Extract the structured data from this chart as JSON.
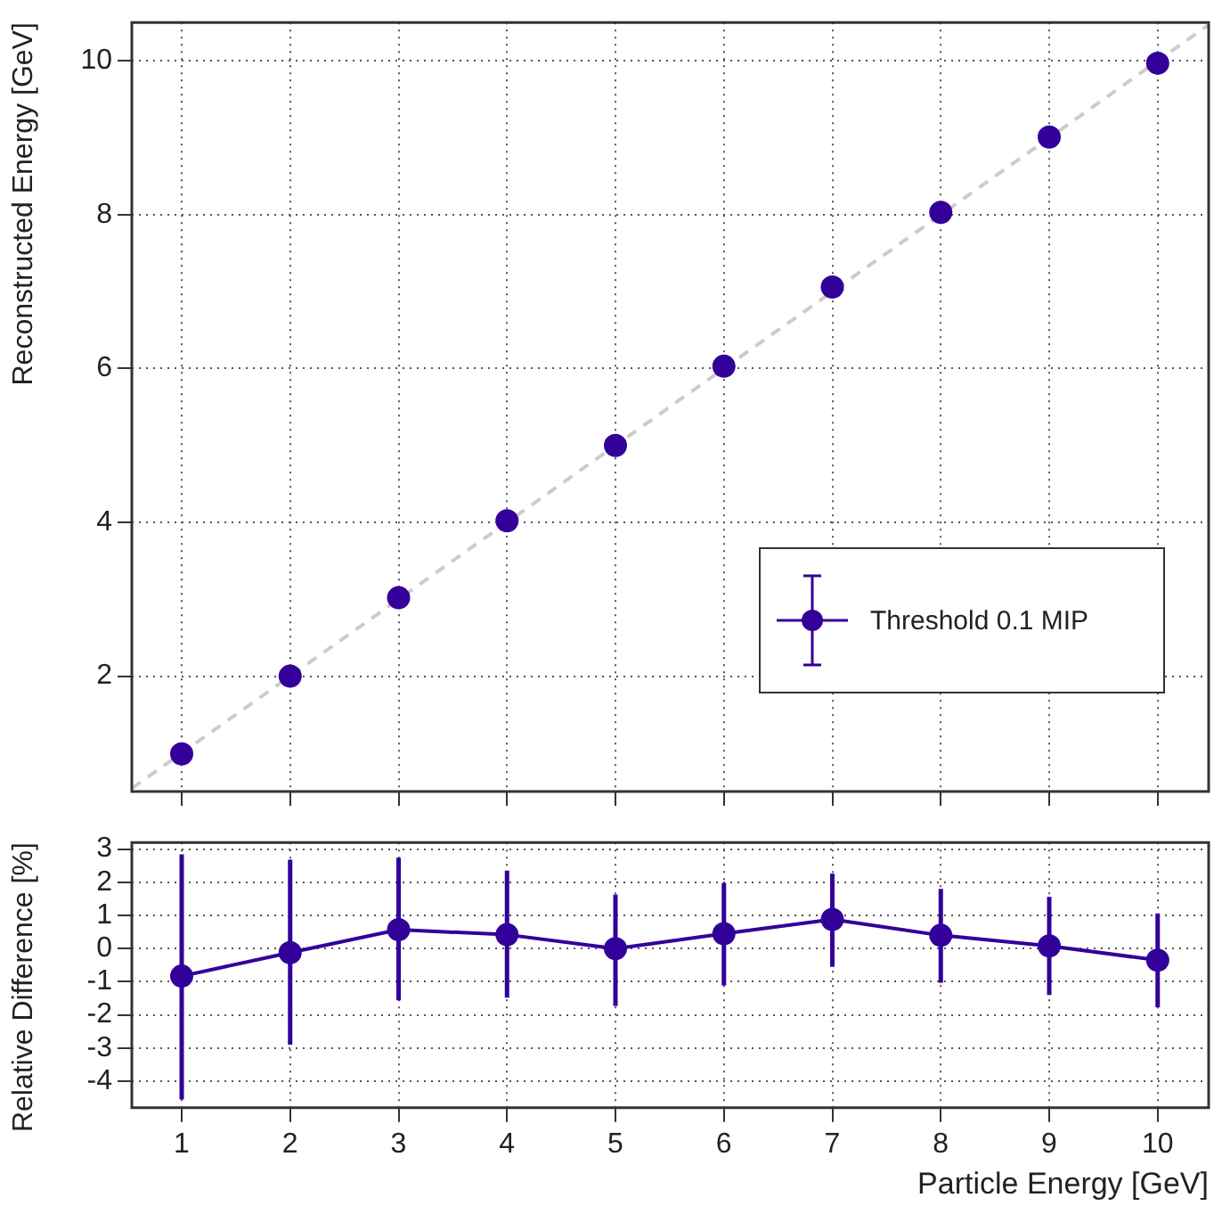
{
  "chart_data": [
    {
      "type": "scatter",
      "ylabel": "Reconstructed Energy [GeV]",
      "xlim": [
        0.54,
        10.47
      ],
      "xticks": [
        1,
        2,
        3,
        4,
        5,
        6,
        7,
        8,
        9,
        10
      ],
      "ylim": [
        0.5,
        10.5
      ],
      "yticks": [
        2,
        4,
        6,
        8,
        10
      ],
      "tick_labels": "y",
      "grid": true,
      "legend": "bottom right",
      "marker": "circle",
      "series": [
        {
          "name": "Threshold 0.1 MIP",
          "color": "#330099",
          "x": [
            1,
            2,
            3,
            4,
            5,
            6,
            7,
            8,
            9,
            10
          ],
          "values": [
            0.99,
            2.0,
            3.02,
            4.02,
            5.0,
            6.03,
            7.06,
            8.03,
            9.01,
            9.97
          ]
        },
        {
          "type": "line",
          "color": "#cccccc",
          "line_style": "dashed",
          "marker": "none",
          "x": [
            0.54,
            10.47
          ],
          "values": [
            0.54,
            10.47
          ]
        }
      ]
    },
    {
      "type": "line",
      "xlabel": "Particle Energy [GeV]",
      "ylabel": "Relative Difference [%]",
      "xlim": [
        0.54,
        10.47
      ],
      "xticks": [
        1,
        2,
        3,
        4,
        5,
        6,
        7,
        8,
        9,
        10
      ],
      "ylim": [
        -4.8,
        3.2
      ],
      "yticks": [
        -4,
        -3,
        -2,
        -1,
        0,
        1,
        2,
        3
      ],
      "grid": true,
      "marker": "circle",
      "series": [
        {
          "color": "#330099",
          "x": [
            1,
            2,
            3,
            4,
            5,
            6,
            7,
            8,
            9,
            10
          ],
          "values": [
            -0.83,
            -0.12,
            0.57,
            0.42,
            0.0,
            0.45,
            0.88,
            0.4,
            0.08,
            -0.35
          ],
          "errors": [
            [
              -4.55,
              2.84
            ],
            [
              -2.9,
              2.68
            ],
            [
              -1.56,
              2.74
            ],
            [
              -1.48,
              2.35
            ],
            [
              -1.73,
              1.63
            ],
            [
              -1.11,
              1.98
            ],
            [
              -0.55,
              2.26
            ],
            [
              -1.03,
              1.8
            ],
            [
              -1.4,
              1.56
            ],
            [
              -1.77,
              1.06
            ]
          ]
        }
      ]
    }
  ]
}
